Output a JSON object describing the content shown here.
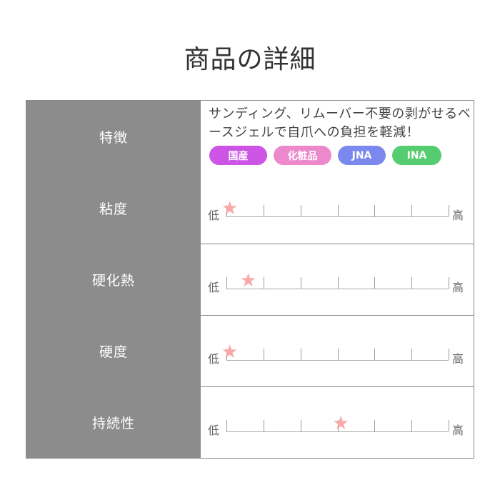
{
  "title": "商品の詳細",
  "feature": {
    "label": "特徴",
    "description": "サンディング、リムーバー不要の剥がせるベースジェルで自爪への負担を軽減！",
    "tags": [
      {
        "text": "国産",
        "color": "#cc55e6"
      },
      {
        "text": "化粧品",
        "color": "#ee88cc"
      },
      {
        "text": "JNA",
        "color": "#7b88ee"
      },
      {
        "text": "INA",
        "color": "#55cc70"
      }
    ]
  },
  "scale_low": "低",
  "scale_high": "高",
  "scale_max": 6,
  "ratings": [
    {
      "label": "粘度",
      "level": 0
    },
    {
      "label": "硬化熱",
      "level": 0.5
    },
    {
      "label": "硬度",
      "level": 0
    },
    {
      "label": "持続性",
      "level": 3
    }
  ]
}
